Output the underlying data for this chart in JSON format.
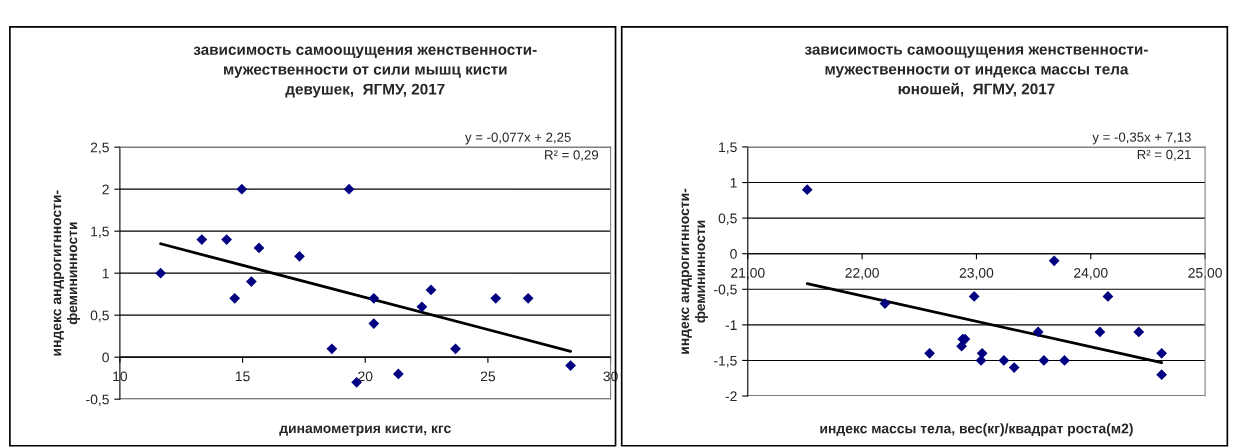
{
  "chart_data": [
    {
      "type": "scatter",
      "title": "зависимость самоощущения женственности-\nмужественности от сили мышц кисти\nдевушек,  ЯГМУ, 2017",
      "xlabel": "динамометрия кисти, кгс",
      "ylabel": "индекс андрогигнности-\nфемининности",
      "annotations": [
        "y = -0,077x + 2,25",
        "R² = 0,29"
      ],
      "xlim": [
        10,
        30
      ],
      "xticks": [
        10,
        15,
        20,
        25,
        30
      ],
      "ylim": [
        -0.5,
        2.5
      ],
      "yticks": [
        {
          "value": -0.5,
          "label": "-0,5"
        },
        0,
        {
          "value": 0.5,
          "label": "0,5"
        },
        1,
        {
          "value": 1.5,
          "label": "1,5"
        },
        2,
        {
          "value": 2.5,
          "label": "2,5"
        }
      ],
      "grid": "y",
      "legend": false,
      "series": [
        {
          "type": "scatter",
          "color": "#000080",
          "marker": "diamond",
          "x": [
            11.66,
            13.34,
            14.35,
            14.68,
            14.97,
            15.36,
            15.67,
            17.32,
            18.64,
            19.34,
            19.65,
            20.35,
            20.35,
            21.35,
            22.31,
            22.68,
            23.68,
            25.32,
            26.64,
            28.37
          ],
          "values": [
            1.0,
            1.4,
            1.4,
            0.7,
            2.0,
            0.9,
            1.3,
            1.2,
            0.1,
            2.0,
            -0.3,
            0.7,
            0.4,
            -0.2,
            0.6,
            0.8,
            0.1,
            0.7,
            0.7,
            -0.1
          ]
        },
        {
          "type": "line",
          "color": "#000000",
          "marker": "none",
          "line_style": "solid",
          "x": [
            11.66,
            28.37
          ],
          "values": [
            1.35,
            0.07
          ]
        }
      ]
    },
    {
      "type": "scatter",
      "title": "зависимость самоощущения женственности-\nмужественности от индекса массы тела\nюношей,  ЯГМУ, 2017",
      "xlabel": "индекс массы тела, вес(кг)/квадрат роста(м2)",
      "ylabel": "индекс андрогигнности-\nфемининности",
      "annotations": [
        "y = -0,35x + 7,13",
        "R² = 0,21"
      ],
      "xlim": [
        21,
        25
      ],
      "xticks": [
        {
          "value": 21,
          "label": "21,00"
        },
        {
          "value": 22,
          "label": "22,00"
        },
        {
          "value": 23,
          "label": "23,00"
        },
        {
          "value": 24,
          "label": "24,00"
        },
        {
          "value": 25,
          "label": "25,00"
        }
      ],
      "ylim": [
        -2,
        1.5
      ],
      "yticks": [
        -2,
        {
          "value": -1.5,
          "label": "-1,5"
        },
        -1,
        {
          "value": -0.5,
          "label": "-0,5"
        },
        0,
        {
          "value": 0.5,
          "label": "0,5"
        },
        1,
        {
          "value": 1.5,
          "label": "1,5"
        }
      ],
      "grid": "y",
      "legend": false,
      "series": [
        {
          "type": "scatter",
          "color": "#000080",
          "marker": "diamond",
          "x": [
            21.52,
            22.2,
            22.59,
            22.87,
            22.88,
            22.9,
            22.98,
            23.04,
            23.05,
            23.24,
            23.33,
            23.54,
            23.59,
            23.68,
            23.77,
            24.08,
            24.15,
            24.42,
            24.62,
            24.62
          ],
          "values": [
            0.9,
            -0.7,
            -1.4,
            -1.3,
            -1.2,
            -1.2,
            -0.6,
            -1.5,
            -1.4,
            -1.5,
            -1.6,
            -1.1,
            -1.5,
            -0.1,
            -1.5,
            -1.1,
            -0.6,
            -1.1,
            -1.4,
            -1.7
          ]
        },
        {
          "type": "line",
          "color": "#000000",
          "marker": "none",
          "line_style": "solid",
          "x": [
            21.52,
            24.62
          ],
          "values": [
            -0.42,
            -1.53
          ]
        }
      ]
    }
  ]
}
